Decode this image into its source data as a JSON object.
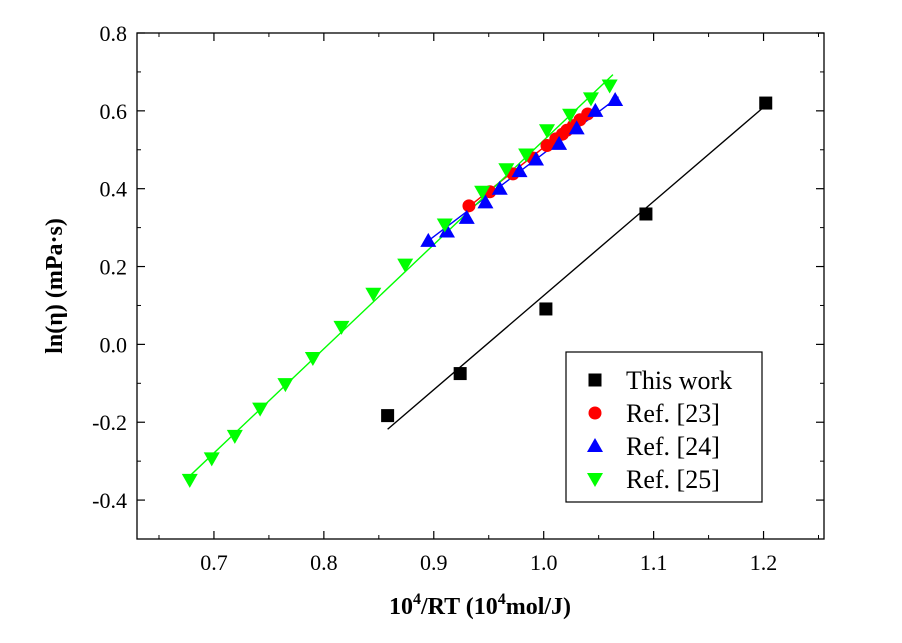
{
  "chart_data": {
    "type": "scatter",
    "title": "",
    "xlabel": {
      "base": "10",
      "sup": "4",
      "mid": "/RT (10",
      "sup2": "4",
      "tail": "mol/J)"
    },
    "ylabel": "ln(η) (mPa·s)",
    "xlim": [
      0.63,
      1.255
    ],
    "ylim": [
      -0.5,
      0.8
    ],
    "x_ticks": [
      0.7,
      0.8,
      0.9,
      1.0,
      1.1,
      1.2
    ],
    "x_tick_labels": [
      "0.7",
      "0.8",
      "0.9",
      "1.0",
      "1.1",
      "1.2"
    ],
    "y_ticks": [
      -0.4,
      -0.2,
      0.0,
      0.2,
      0.4,
      0.6,
      0.8
    ],
    "y_tick_labels": [
      "-0.4",
      "-0.2",
      "0.0",
      "0.2",
      "0.4",
      "0.6",
      "0.8"
    ],
    "legend_position": "bottom-right",
    "series": [
      {
        "name": "This work",
        "marker": "square",
        "color": "#000000",
        "points": [
          [
            0.858,
            -0.183
          ],
          [
            0.924,
            -0.075
          ],
          [
            1.002,
            0.091
          ],
          [
            1.093,
            0.335
          ],
          [
            1.202,
            0.62
          ]
        ],
        "fit": {
          "x": [
            0.858,
            1.202
          ],
          "y": [
            -0.218,
            0.614
          ]
        }
      },
      {
        "name": "Ref. [23]",
        "marker": "circle",
        "color": "#ff0000",
        "points": [
          [
            0.932,
            0.356
          ],
          [
            0.951,
            0.392
          ],
          [
            0.972,
            0.438
          ],
          [
            0.99,
            0.479
          ],
          [
            1.003,
            0.511
          ],
          [
            1.011,
            0.528
          ],
          [
            1.017,
            0.54
          ],
          [
            1.021,
            0.55
          ],
          [
            1.027,
            0.562
          ],
          [
            1.033,
            0.577
          ],
          [
            1.04,
            0.592
          ]
        ],
        "fit": {
          "x": [
            0.928,
            1.042
          ],
          "y": [
            0.345,
            0.6
          ]
        }
      },
      {
        "name": "Ref. [24]",
        "marker": "triangle-up",
        "color": "#0000ff",
        "points": [
          [
            0.895,
            0.266
          ],
          [
            0.912,
            0.29
          ],
          [
            0.93,
            0.325
          ],
          [
            0.947,
            0.365
          ],
          [
            0.96,
            0.4
          ],
          [
            0.978,
            0.445
          ],
          [
            0.993,
            0.475
          ],
          [
            1.014,
            0.515
          ],
          [
            1.03,
            0.555
          ],
          [
            1.047,
            0.6
          ],
          [
            1.065,
            0.628
          ]
        ],
        "fit": {
          "x": [
            0.893,
            1.068
          ],
          "y": [
            0.262,
            0.636
          ]
        }
      },
      {
        "name": "Ref. [25]",
        "marker": "triangle-down",
        "color": "#00ff00",
        "points": [
          [
            0.678,
            -0.348
          ],
          [
            0.698,
            -0.293
          ],
          [
            0.719,
            -0.235
          ],
          [
            0.742,
            -0.165
          ],
          [
            0.765,
            -0.102
          ],
          [
            0.79,
            -0.035
          ],
          [
            0.816,
            0.045
          ],
          [
            0.845,
            0.13
          ],
          [
            0.874,
            0.205
          ],
          [
            0.91,
            0.308
          ],
          [
            0.944,
            0.392
          ],
          [
            0.966,
            0.45
          ],
          [
            0.984,
            0.488
          ],
          [
            1.003,
            0.55
          ],
          [
            1.024,
            0.59
          ],
          [
            1.043,
            0.632
          ],
          [
            1.06,
            0.665
          ]
        ],
        "fit": {
          "x": [
            0.678,
            1.063
          ],
          "y": [
            -0.338,
            0.693
          ]
        }
      }
    ]
  }
}
